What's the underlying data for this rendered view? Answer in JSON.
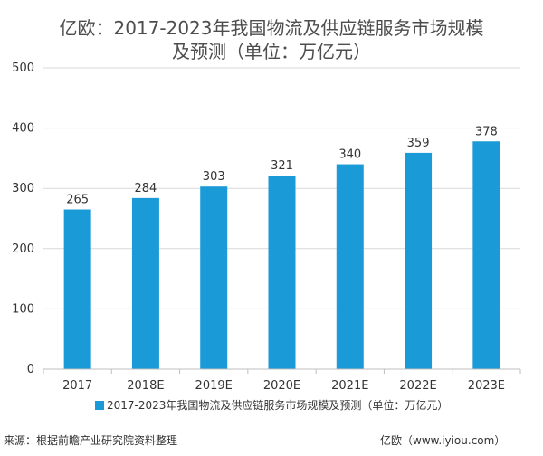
{
  "chart_data": {
    "type": "bar",
    "title_line1": "亿欧：2017-2023年我国物流及供应链服务市场规模",
    "title_line2": "及预测（单位：万亿元）",
    "categories": [
      "2017",
      "2018E",
      "2019E",
      "2020E",
      "2021E",
      "2022E",
      "2023E"
    ],
    "series": [
      {
        "name": "2017-2023年我国物流及供应链服务市场规模及预测（单位：万亿元）",
        "values": [
          265,
          284,
          303,
          321,
          340,
          359,
          378
        ],
        "color": "#1a9ad6"
      }
    ],
    "ylim": [
      0,
      500
    ],
    "yticks": [
      0,
      100,
      200,
      300,
      400,
      500
    ],
    "grid": true,
    "legend_position": "bottom"
  },
  "footer": {
    "source": "来源：根据前瞻产业研究院资料整理",
    "brand": "亿欧（www.iyiou.com）"
  },
  "colors": {
    "grid": "#d9d9d9",
    "axis": "#bfbfbf"
  }
}
